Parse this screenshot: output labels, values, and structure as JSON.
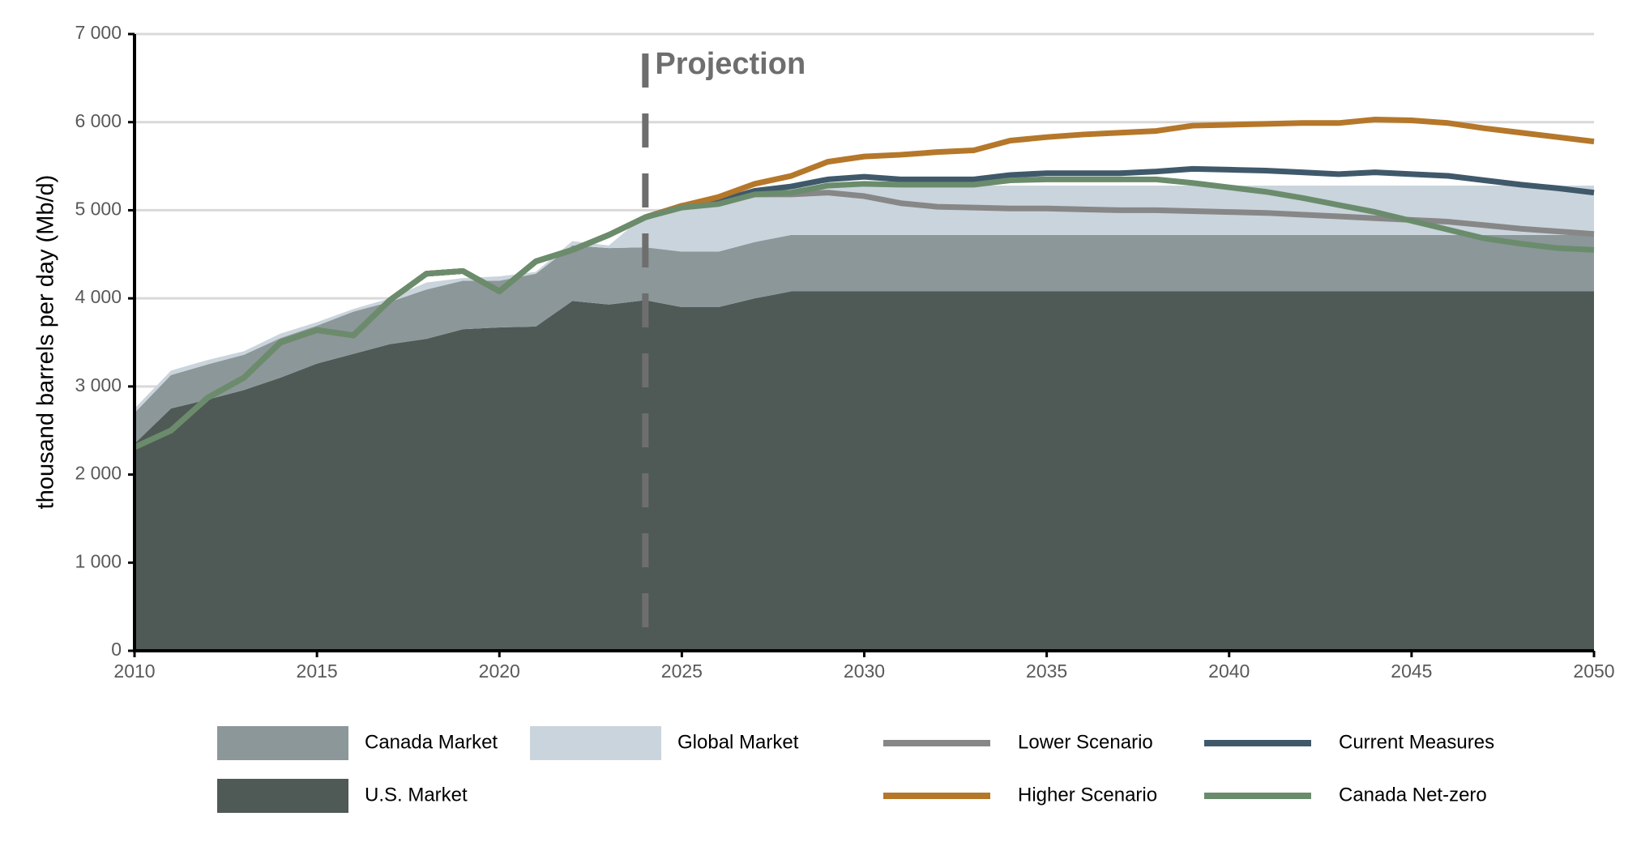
{
  "chart_data": {
    "type": "area",
    "y_label": "thousand barrels per day (Mb/d)",
    "x": [
      2010,
      2011,
      2012,
      2013,
      2014,
      2015,
      2016,
      2017,
      2018,
      2019,
      2020,
      2021,
      2022,
      2023,
      2024,
      2025,
      2026,
      2027,
      2028,
      2029,
      2030,
      2031,
      2032,
      2033,
      2034,
      2035,
      2036,
      2037,
      2038,
      2039,
      2040,
      2041,
      2042,
      2043,
      2044,
      2045,
      2046,
      2047,
      2048,
      2049,
      2050
    ],
    "xlim": [
      2010,
      2050
    ],
    "xticks": [
      2010,
      2015,
      2020,
      2025,
      2030,
      2035,
      2040,
      2045,
      2050
    ],
    "ylim": [
      0,
      7000
    ],
    "yticks": [
      0,
      {
        "value": 1000,
        "label": "1 000"
      },
      {
        "value": 2000,
        "label": "2 000"
      },
      {
        "value": 3000,
        "label": "3 000"
      },
      {
        "value": 4000,
        "label": "4 000"
      },
      {
        "value": 5000,
        "label": "5 000"
      },
      {
        "value": 6000,
        "label": "6 000"
      },
      {
        "value": 7000,
        "label": "7 000"
      }
    ],
    "grid": true,
    "annotations": [
      {
        "text": "Projection",
        "x": 2024
      }
    ],
    "series": [
      {
        "name": "U.S. Market",
        "type": "area",
        "color": "#4f5a57",
        "values": [
          2350,
          2750,
          2850,
          2960,
          3100,
          3260,
          3370,
          3480,
          3540,
          3650,
          3670,
          3680,
          3970,
          3930,
          3980,
          3900,
          3900,
          4000,
          4080,
          4080,
          4080,
          4080,
          4080,
          4080,
          4080,
          4080,
          4080,
          4080,
          4080,
          4080,
          4080,
          4080,
          4080,
          4080,
          4080,
          4080,
          4080,
          4080,
          4080,
          4080,
          4080
        ]
      },
      {
        "name": "Canada Market",
        "type": "area",
        "color": "#8c979a",
        "values": [
          350,
          380,
          400,
          400,
          450,
          430,
          480,
          480,
          560,
          550,
          530,
          600,
          630,
          640,
          600,
          630,
          630,
          640,
          640,
          640,
          640,
          640,
          640,
          640,
          640,
          640,
          640,
          640,
          640,
          640,
          640,
          640,
          640,
          640,
          640,
          640,
          640,
          640,
          640,
          640,
          640
        ]
      },
      {
        "name": "Global Market",
        "type": "area",
        "color": "#cad4dc",
        "values": [
          50,
          50,
          50,
          40,
          50,
          40,
          30,
          40,
          80,
          30,
          50,
          20,
          50,
          30,
          370,
          520,
          570,
          560,
          530,
          560,
          560,
          560,
          560,
          560,
          560,
          560,
          560,
          560,
          560,
          560,
          560,
          560,
          560,
          560,
          560,
          560,
          560,
          560,
          560,
          560,
          560
        ]
      },
      {
        "name": "Lower Scenario",
        "type": "line",
        "color": "#878787",
        "values": [
          2310,
          2500,
          2870,
          3100,
          3500,
          3640,
          3580,
          3980,
          4280,
          4310,
          4080,
          4420,
          4550,
          4720,
          4920,
          5050,
          5100,
          5180,
          5180,
          5200,
          5160,
          5080,
          5040,
          5030,
          5020,
          5020,
          5010,
          5000,
          5000,
          4990,
          4980,
          4970,
          4950,
          4930,
          4910,
          4890,
          4870,
          4830,
          4790,
          4760,
          4730
        ]
      },
      {
        "name": "Current Measures",
        "type": "line",
        "color": "#3f596a",
        "values": [
          2310,
          2500,
          2870,
          3100,
          3500,
          3640,
          3580,
          3980,
          4280,
          4310,
          4080,
          4420,
          4550,
          4720,
          4920,
          5050,
          5100,
          5220,
          5270,
          5350,
          5380,
          5350,
          5350,
          5350,
          5400,
          5420,
          5420,
          5420,
          5440,
          5470,
          5460,
          5450,
          5430,
          5410,
          5430,
          5410,
          5390,
          5340,
          5290,
          5250,
          5200
        ]
      },
      {
        "name": "Higher Scenario",
        "type": "line",
        "color": "#b5772a",
        "values": [
          2310,
          2500,
          2870,
          3100,
          3500,
          3640,
          3580,
          3980,
          4280,
          4310,
          4080,
          4420,
          4550,
          4720,
          4920,
          5050,
          5150,
          5300,
          5390,
          5550,
          5610,
          5630,
          5660,
          5680,
          5790,
          5830,
          5860,
          5880,
          5900,
          5960,
          5970,
          5980,
          5990,
          5990,
          6030,
          6020,
          5990,
          5930,
          5880,
          5830,
          5780
        ]
      },
      {
        "name": "Canada Net-zero",
        "type": "line",
        "color": "#6a8c6c",
        "values": [
          2310,
          2500,
          2870,
          3100,
          3500,
          3640,
          3580,
          3980,
          4280,
          4310,
          4080,
          4420,
          4550,
          4720,
          4920,
          5030,
          5070,
          5180,
          5200,
          5280,
          5300,
          5290,
          5290,
          5290,
          5340,
          5350,
          5350,
          5350,
          5350,
          5310,
          5260,
          5210,
          5140,
          5060,
          4980,
          4880,
          4780,
          4680,
          4620,
          4570,
          4550
        ]
      }
    ]
  }
}
